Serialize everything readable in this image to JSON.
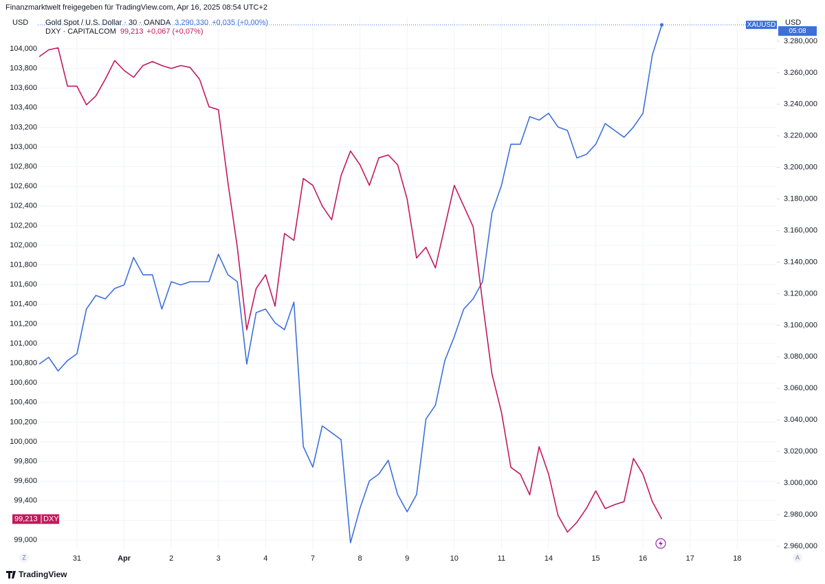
{
  "header": {
    "caption": "Finanzmarktwelt freigegeben für TradingView.com, Apr 16, 2025 08:54 UTC+2"
  },
  "chart_data": {
    "type": "line",
    "x": [
      -0.8,
      -0.6,
      -0.4,
      -0.2,
      0,
      0.2,
      0.4,
      0.6,
      0.8,
      1,
      1.2,
      1.4,
      1.6,
      1.8,
      2,
      2.2,
      2.4,
      2.6,
      2.8,
      3,
      3.2,
      3.4,
      3.6,
      3.8,
      4,
      4.2,
      4.4,
      4.6,
      4.8,
      5,
      5.2,
      5.4,
      5.6,
      5.8,
      6,
      6.2,
      6.4,
      6.6,
      6.8,
      7,
      7.2,
      7.4,
      7.6,
      7.8,
      8,
      8.2,
      8.4,
      8.6,
      8.8,
      9,
      9.2,
      9.4,
      9.6,
      9.8,
      10,
      10.2,
      10.4,
      10.6,
      10.8,
      11,
      11.2,
      11.4,
      11.6,
      11.8,
      12,
      12.2,
      12.4
    ],
    "xlim": [
      -0.83,
      14.84
    ],
    "xticks": [
      {
        "value": 0,
        "label": "31"
      },
      {
        "value": 1,
        "label": "Apr"
      },
      {
        "value": 2,
        "label": "2"
      },
      {
        "value": 3,
        "label": "3"
      },
      {
        "value": 4,
        "label": "4"
      },
      {
        "value": 5,
        "label": "7"
      },
      {
        "value": 6,
        "label": "8"
      },
      {
        "value": 7,
        "label": "9"
      },
      {
        "value": 8,
        "label": "10"
      },
      {
        "value": 9,
        "label": "11"
      },
      {
        "value": 10,
        "label": "14"
      },
      {
        "value": 11,
        "label": "15"
      },
      {
        "value": 12,
        "label": "16"
      },
      {
        "value": 13,
        "label": "17"
      },
      {
        "value": 14,
        "label": "18"
      }
    ],
    "ylim": [
      98.902,
      104.322
    ],
    "yticks": [
      {
        "value": 99,
        "label": "99,000"
      },
      {
        "value": 99.2,
        "label": "99,200"
      },
      {
        "value": 99.4,
        "label": "99,400"
      },
      {
        "value": 99.6,
        "label": "99,600"
      },
      {
        "value": 99.8,
        "label": "99,800"
      },
      {
        "value": 100,
        "label": "100,000"
      },
      {
        "value": 100.2,
        "label": "100,200"
      },
      {
        "value": 100.4,
        "label": "100,400"
      },
      {
        "value": 100.6,
        "label": "100,600"
      },
      {
        "value": 100.8,
        "label": "100,800"
      },
      {
        "value": 101,
        "label": "101,000"
      },
      {
        "value": 101.2,
        "label": "101,200"
      },
      {
        "value": 101.4,
        "label": "101,400"
      },
      {
        "value": 101.6,
        "label": "101,600"
      },
      {
        "value": 101.8,
        "label": "101,800"
      },
      {
        "value": 102,
        "label": "102,000"
      },
      {
        "value": 102.2,
        "label": "102,200"
      },
      {
        "value": 102.4,
        "label": "102,400"
      },
      {
        "value": 102.6,
        "label": "102,600"
      },
      {
        "value": 102.8,
        "label": "102,800"
      },
      {
        "value": 103,
        "label": "103,000"
      },
      {
        "value": 103.2,
        "label": "103,200"
      },
      {
        "value": 103.4,
        "label": "103,400"
      },
      {
        "value": 103.6,
        "label": "103,600"
      },
      {
        "value": 103.8,
        "label": "103,800"
      },
      {
        "value": 104,
        "label": "104,000"
      }
    ],
    "y_unit": "USD",
    "y2lim": [
      2957.8,
      3295.2
    ],
    "y2ticks": [
      {
        "value": 2960,
        "label": "2.960,000"
      },
      {
        "value": 2980,
        "label": "2.980,000"
      },
      {
        "value": 3000,
        "label": "3.000,000"
      },
      {
        "value": 3020,
        "label": "3.020,000"
      },
      {
        "value": 3040,
        "label": "3.040,000"
      },
      {
        "value": 3060,
        "label": "3.060,000"
      },
      {
        "value": 3080,
        "label": "3.080,000"
      },
      {
        "value": 3100,
        "label": "3.100,000"
      },
      {
        "value": 3120,
        "label": "3.120,000"
      },
      {
        "value": 3140,
        "label": "3.140,000"
      },
      {
        "value": 3160,
        "label": "3.160,000"
      },
      {
        "value": 3180,
        "label": "3.180,000"
      },
      {
        "value": 3200,
        "label": "3.200,000"
      },
      {
        "value": 3220,
        "label": "3.220,000"
      },
      {
        "value": 3240,
        "label": "3.240,000"
      },
      {
        "value": 3260,
        "label": "3.260,000"
      },
      {
        "value": 3280,
        "label": "3.280,000"
      }
    ],
    "y2_unit": "USD",
    "grid": true,
    "series": [
      {
        "name": "Gold Spot / U.S. Dollar · 30 · OANDA",
        "color": "#3b6fdc",
        "axis": "y2",
        "last_label": "3.290,330",
        "change": "+0,035 (+0,00%)",
        "tag": "XAUUSD",
        "countdown": "05:08",
        "values": [
          3075.4,
          3079.7,
          3071.0,
          3077.6,
          3081.9,
          3110.2,
          3118.9,
          3116.7,
          3123.3,
          3125.5,
          3142.9,
          3132.0,
          3132.0,
          3110.2,
          3127.6,
          3125.5,
          3127.6,
          3127.6,
          3127.6,
          3145.0,
          3132.0,
          3127.6,
          3075.4,
          3108.0,
          3110.2,
          3101.5,
          3097.2,
          3114.6,
          3023.1,
          3010.1,
          3036.2,
          3031.9,
          3027.5,
          2962.2,
          2984.0,
          3001.4,
          3005.7,
          3014.4,
          2992.7,
          2981.8,
          2992.7,
          3040.6,
          3049.3,
          3077.6,
          3092.8,
          3110.2,
          3116.7,
          3127.6,
          3171.2,
          3188.6,
          3214.7,
          3214.7,
          3232.1,
          3230.0,
          3234.3,
          3225.6,
          3223.4,
          3206.0,
          3208.2,
          3214.7,
          3227.8,
          3223.4,
          3219.1,
          3225.6,
          3234.3,
          3271.3,
          3290.33
        ]
      },
      {
        "name": "DXY · CAPITALCOM",
        "color": "#c2185b",
        "last_label": "99,213",
        "change": "+0,067 (+0,07%)",
        "tag": "DXY",
        "values": [
          103.92,
          103.99,
          104.01,
          103.62,
          103.62,
          103.43,
          103.52,
          103.69,
          103.88,
          103.78,
          103.71,
          103.83,
          103.87,
          103.83,
          103.8,
          103.83,
          103.81,
          103.69,
          103.41,
          103.38,
          102.64,
          101.98,
          101.14,
          101.56,
          101.7,
          101.38,
          102.12,
          102.05,
          102.68,
          102.61,
          102.4,
          102.26,
          102.71,
          102.96,
          102.82,
          102.61,
          102.89,
          102.92,
          102.82,
          102.47,
          101.87,
          101.98,
          101.77,
          102.19,
          102.61,
          102.4,
          102.19,
          101.42,
          100.69,
          100.3,
          99.74,
          99.67,
          99.46,
          99.95,
          99.67,
          99.25,
          99.08,
          99.18,
          99.32,
          99.5,
          99.32,
          99.36,
          99.39,
          99.83,
          99.67,
          99.39,
          99.213
        ]
      }
    ]
  },
  "controls": {
    "scale_left": "Z",
    "scale_right": "A"
  },
  "footer": {
    "brand": "TradingView"
  }
}
